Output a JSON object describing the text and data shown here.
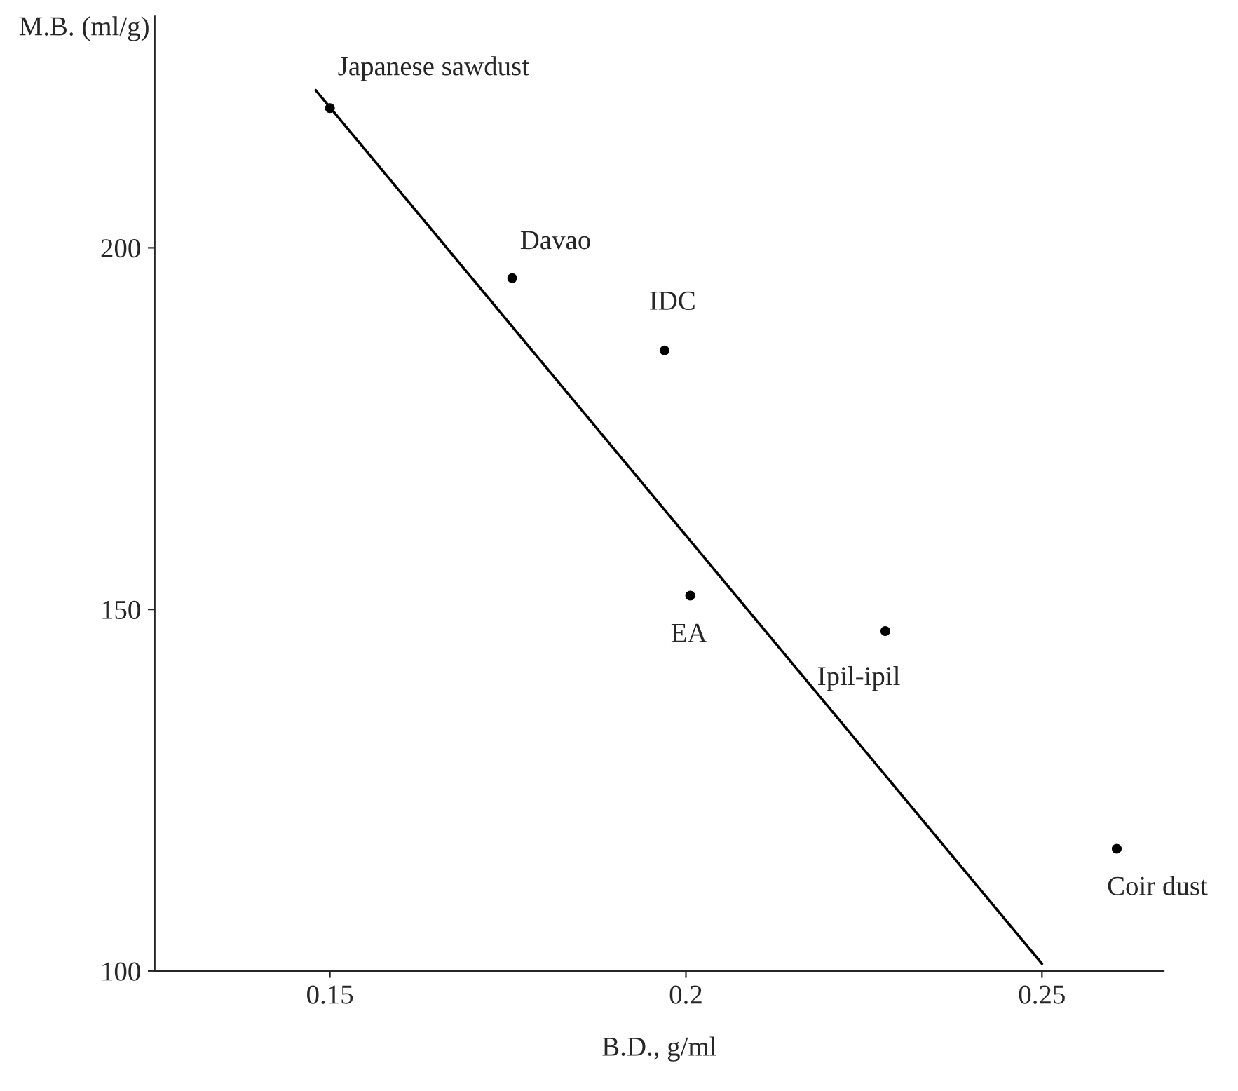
{
  "chart_data": {
    "type": "scatter",
    "xlabel": "B.D., g/ml",
    "ylabel": "M.B. (ml/g)",
    "xlim": [
      0.1254,
      0.2671
    ],
    "ylim": [
      100,
      232
    ],
    "xticks": [
      0.15,
      0.2,
      0.25
    ],
    "yticks": [
      100,
      150,
      200
    ],
    "grid": false,
    "legend": false,
    "series": [
      {
        "color": "#000000",
        "marker": "circle",
        "x": [
          0.15,
          0.1756,
          0.197,
          0.2006,
          0.228,
          0.2605
        ],
        "values": [
          219.3,
          195.8,
          185.8,
          151.9,
          147.0,
          116.9
        ]
      },
      {
        "type": "line",
        "color": "#000000",
        "line_style": "solid",
        "x": [
          0.148,
          0.25
        ],
        "values": [
          221.8,
          101
        ]
      }
    ],
    "annotations": [
      {
        "text": "Japanese sawdust",
        "x": 0.15,
        "y": 219.3
      },
      {
        "text": "Davao",
        "x": 0.1756,
        "y": 195.8
      },
      {
        "text": "IDC",
        "x": 0.197,
        "y": 185.8
      },
      {
        "text": "EA",
        "x": 0.2006,
        "y": 151.9
      },
      {
        "text": "Ipil-ipil",
        "x": 0.228,
        "y": 147.0
      },
      {
        "text": "Coir dust",
        "x": 0.2605,
        "y": 116.9
      }
    ]
  }
}
